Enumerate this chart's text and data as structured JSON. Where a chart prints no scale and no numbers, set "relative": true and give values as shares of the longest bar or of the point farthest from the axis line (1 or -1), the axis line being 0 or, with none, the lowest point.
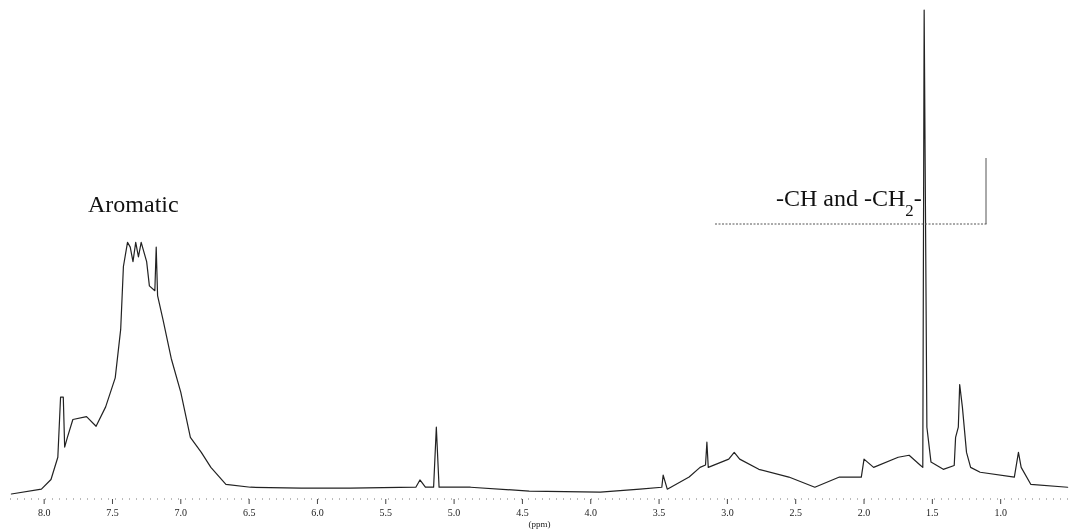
{
  "chart_data": {
    "type": "line",
    "relative": true,
    "xlabel": "(ppm)",
    "xlim": [
      8.25,
      0.5
    ],
    "xticks": [
      {
        "value": 8,
        "label": "8.0"
      },
      {
        "value": 7.5,
        "label": "7.5"
      },
      {
        "value": 7,
        "label": "7.0"
      },
      {
        "value": 6.5,
        "label": "6.5"
      },
      {
        "value": 6,
        "label": "6.0"
      },
      {
        "value": 5.5,
        "label": "5.5"
      },
      {
        "value": 5,
        "label": "5.0"
      },
      {
        "value": 4.5,
        "label": "4.5"
      },
      {
        "value": 4,
        "label": "4.0"
      },
      {
        "value": 3.5,
        "label": "3.5"
      },
      {
        "value": 3,
        "label": "3.0"
      },
      {
        "value": 2.5,
        "label": "2.5"
      },
      {
        "value": 2,
        "label": "2.0"
      },
      {
        "value": 1.5,
        "label": "1.5"
      },
      {
        "value": 1,
        "label": "1.0"
      }
    ],
    "annotations": [
      "Aromatic",
      "-CH and -CH$_{2}$-"
    ],
    "series": [
      {
        "color": "#222222",
        "x": [
          8.24,
          8.02,
          7.95,
          7.9,
          7.88,
          7.86,
          7.85,
          7.83,
          7.79,
          7.69,
          7.62,
          7.55,
          7.48,
          7.44,
          7.42,
          7.39,
          7.37,
          7.35,
          7.33,
          7.31,
          7.29,
          7.25,
          7.23,
          7.19,
          7.18,
          7.17,
          7.13,
          7.07,
          7.0,
          6.93,
          6.85,
          6.78,
          6.67,
          6.49,
          6.12,
          5.76,
          5.28,
          5.25,
          5.21,
          5.15,
          5.13,
          5.11,
          4.88,
          4.45,
          3.93,
          3.64,
          3.48,
          3.47,
          3.44,
          3.28,
          3.2,
          3.16,
          3.15,
          3.14,
          2.99,
          2.95,
          2.91,
          2.77,
          2.55,
          2.36,
          2.18,
          2.02,
          2.0,
          1.93,
          1.75,
          1.67,
          1.59,
          1.57,
          1.56,
          1.54,
          1.51,
          1.42,
          1.34,
          1.33,
          1.31,
          1.3,
          1.28,
          1.25,
          1.22,
          1.15,
          0.9,
          0.87,
          0.85,
          0.78,
          0.51
        ],
        "values": [
          0,
          0.01,
          0.03,
          0.076,
          0.2,
          0.2,
          0.097,
          0.117,
          0.154,
          0.16,
          0.14,
          0.18,
          0.24,
          0.34,
          0.47,
          0.52,
          0.51,
          0.48,
          0.52,
          0.49,
          0.52,
          0.48,
          0.43,
          0.42,
          0.51,
          0.41,
          0.36,
          0.28,
          0.21,
          0.117,
          0.086,
          0.055,
          0.02,
          0.014,
          0.012,
          0.012,
          0.014,
          0.029,
          0.014,
          0.014,
          0.138,
          0.014,
          0.014,
          0.006,
          0.004,
          0.01,
          0.014,
          0.039,
          0.01,
          0.035,
          0.055,
          0.06,
          0.107,
          0.055,
          0.072,
          0.086,
          0.072,
          0.051,
          0.035,
          0.014,
          0.035,
          0.035,
          0.072,
          0.055,
          0.076,
          0.08,
          0.06,
          0.055,
          1.0,
          0.138,
          0.066,
          0.051,
          0.059,
          0.117,
          0.138,
          0.226,
          0.179,
          0.086,
          0.055,
          0.045,
          0.035,
          0.086,
          0.055,
          0.02,
          0.014
        ]
      }
    ]
  }
}
